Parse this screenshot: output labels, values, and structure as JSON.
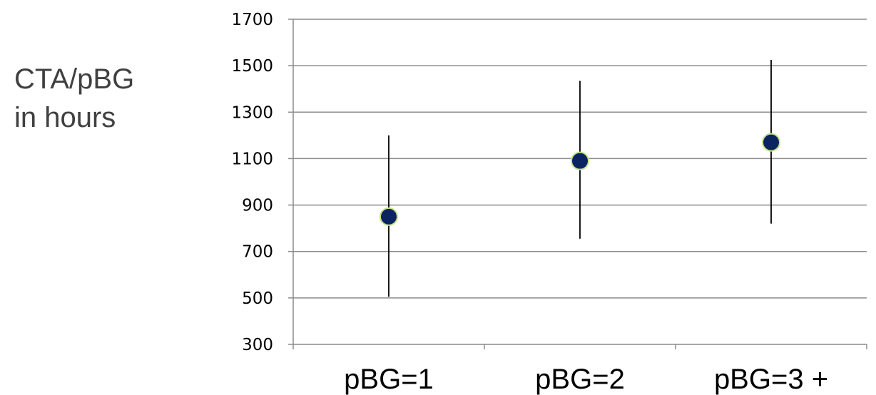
{
  "chart_data": {
    "type": "scatter",
    "title": "",
    "ylabel_lines": [
      "CTA/pBG",
      "in hours"
    ],
    "xlabel": "",
    "categories": [
      "pBG=1",
      "pBG=2",
      "pBG=3 +"
    ],
    "values": [
      850,
      1090,
      1170
    ],
    "error_low": [
      505,
      755,
      820
    ],
    "error_high": [
      1200,
      1435,
      1525
    ],
    "ylim": [
      300,
      1700
    ],
    "yticks": [
      300,
      500,
      700,
      900,
      1100,
      1300,
      1500,
      1700
    ],
    "ytick_labels": [
      "300",
      "500",
      "700",
      "900",
      "1100",
      "1300",
      "1500",
      "1700"
    ],
    "grid": true,
    "legend": "none",
    "colors": {
      "marker_fill": "#0b2461",
      "marker_edge": "#c6e08a",
      "error_bar": "#000000",
      "gridline": "#8c8c8c",
      "axis": "#8c8c8c",
      "ylabel": "#404040"
    }
  }
}
